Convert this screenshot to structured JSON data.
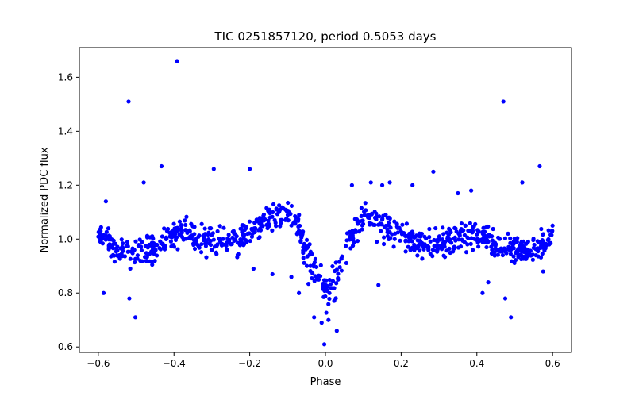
{
  "chart_data": {
    "type": "scatter",
    "title": "TIC 0251857120, period 0.5053 days",
    "xlabel": "Phase",
    "ylabel": "Normalized PDC flux",
    "xlim": [
      -0.65,
      0.65
    ],
    "ylim": [
      0.58,
      1.71
    ],
    "xticks": [
      -0.6,
      -0.4,
      -0.2,
      0.0,
      0.2,
      0.4,
      0.6
    ],
    "xtick_labels": [
      "−0.6",
      "−0.4",
      "−0.2",
      "0.0",
      "0.2",
      "0.4",
      "0.6"
    ],
    "yticks": [
      0.6,
      0.8,
      1.0,
      1.2,
      1.4,
      1.6
    ],
    "ytick_labels": [
      "0.6",
      "0.8",
      "1.0",
      "1.2",
      "1.4",
      "1.6"
    ],
    "grid": false,
    "legend": "none",
    "marker_color": "#0000ff",
    "series": [
      {
        "values": [
          [
            -0.594,
            1.03
          ],
          [
            -0.586,
            0.8
          ],
          [
            -0.58,
            1.14
          ],
          [
            -0.52,
            1.51
          ],
          [
            -0.518,
            0.78
          ],
          [
            -0.502,
            0.71
          ],
          [
            -0.48,
            1.21
          ],
          [
            -0.433,
            1.27
          ],
          [
            -0.392,
            1.66
          ],
          [
            -0.295,
            1.26
          ],
          [
            -0.2,
            1.26
          ],
          [
            -0.19,
            0.89
          ],
          [
            -0.14,
            0.87
          ],
          [
            -0.09,
            0.86
          ],
          [
            -0.07,
            0.8
          ],
          [
            -0.03,
            0.71
          ],
          [
            -0.01,
            0.69
          ],
          [
            -0.003,
            0.61
          ],
          [
            0.008,
            0.7
          ],
          [
            0.03,
            0.66
          ],
          [
            0.07,
            1.2
          ],
          [
            0.12,
            1.21
          ],
          [
            0.14,
            0.83
          ],
          [
            0.15,
            1.2
          ],
          [
            0.17,
            1.21
          ],
          [
            0.23,
            1.2
          ],
          [
            0.285,
            1.25
          ],
          [
            0.35,
            1.17
          ],
          [
            0.385,
            1.18
          ],
          [
            0.415,
            0.8
          ],
          [
            0.43,
            0.84
          ],
          [
            0.47,
            1.51
          ],
          [
            0.475,
            0.78
          ],
          [
            0.49,
            0.71
          ],
          [
            0.52,
            1.21
          ],
          [
            0.566,
            1.27
          ],
          [
            0.575,
            0.88
          ],
          [
            0.6,
            1.05
          ]
        ]
      }
    ],
    "trend": [
      [
        -0.6,
        1.01
      ],
      [
        -0.57,
        0.98
      ],
      [
        -0.53,
        0.96
      ],
      [
        -0.49,
        0.95
      ],
      [
        -0.45,
        0.98
      ],
      [
        -0.41,
        1.01
      ],
      [
        -0.37,
        1.02
      ],
      [
        -0.33,
        1.0
      ],
      [
        -0.29,
        1.0
      ],
      [
        -0.25,
        0.99
      ],
      [
        -0.21,
        1.01
      ],
      [
        -0.17,
        1.05
      ],
      [
        -0.13,
        1.1
      ],
      [
        -0.1,
        1.1
      ],
      [
        -0.08,
        1.07
      ],
      [
        -0.06,
        1.0
      ],
      [
        -0.04,
        0.92
      ],
      [
        -0.02,
        0.85
      ],
      [
        0.0,
        0.8
      ],
      [
        0.02,
        0.84
      ],
      [
        0.04,
        0.91
      ],
      [
        0.06,
        0.98
      ],
      [
        0.08,
        1.04
      ],
      [
        0.11,
        1.08
      ],
      [
        0.14,
        1.07
      ],
      [
        0.18,
        1.03
      ],
      [
        0.22,
        1.0
      ],
      [
        0.26,
        0.98
      ],
      [
        0.3,
        0.98
      ],
      [
        0.34,
        1.01
      ],
      [
        0.38,
        1.02
      ],
      [
        0.42,
        1.01
      ],
      [
        0.46,
        0.98
      ],
      [
        0.5,
        0.96
      ],
      [
        0.54,
        0.95
      ],
      [
        0.57,
        0.98
      ],
      [
        0.6,
        1.01
      ]
    ],
    "trend_scatter": 0.04,
    "trend_points": 900
  }
}
